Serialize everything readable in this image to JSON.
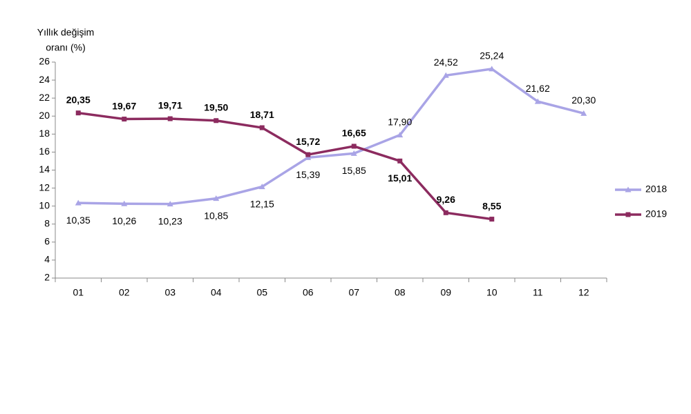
{
  "chart_data": {
    "type": "line",
    "ylabel": [
      "Yıllık  değişim",
      "oranı (%)"
    ],
    "categories": [
      "01",
      "02",
      "03",
      "04",
      "05",
      "06",
      "07",
      "08",
      "09",
      "10",
      "11",
      "12"
    ],
    "series": [
      {
        "name": "2018",
        "color": "#a9a4e6",
        "marker": "triangle",
        "values": [
          10.35,
          10.26,
          10.23,
          10.85,
          12.15,
          15.39,
          15.85,
          17.9,
          24.52,
          25.24,
          21.62,
          20.3
        ],
        "value_labels": [
          "10,35",
          "10,26",
          "10,23",
          "10,85",
          "12,15",
          "15,39",
          "15,85",
          "17,90",
          "24,52",
          "25,24",
          "21,62",
          "20,30"
        ]
      },
      {
        "name": "2019",
        "color": "#8c2b5f",
        "marker": "square",
        "values": [
          20.35,
          19.67,
          19.71,
          19.5,
          18.71,
          15.72,
          16.65,
          15.01,
          9.26,
          8.55,
          null,
          null
        ],
        "value_labels": [
          "20,35",
          "19,67",
          "19,71",
          "19,50",
          "18,71",
          "15,72",
          "16,65",
          "15,01",
          "9,26",
          "8,55",
          null,
          null
        ]
      }
    ],
    "ylim": [
      2,
      26
    ],
    "yticks": [
      2,
      4,
      6,
      8,
      10,
      12,
      14,
      16,
      18,
      20,
      22,
      24,
      26
    ],
    "grid": false,
    "legend": "right"
  }
}
